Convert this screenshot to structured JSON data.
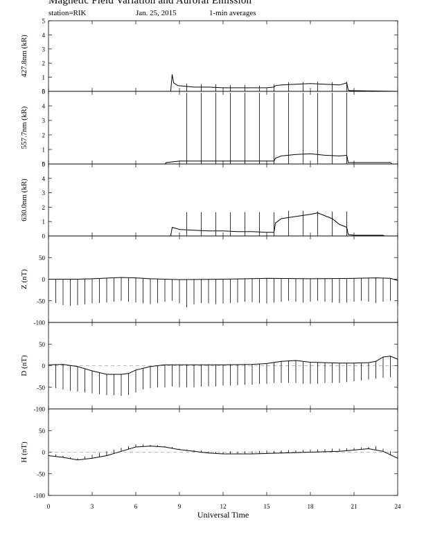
{
  "header": {
    "title": "Magnetic Field Variation and Auroral Emission",
    "station": "station=RIK",
    "date": "Jan. 25, 2015",
    "averaging": "1-min averages"
  },
  "chart_data": {
    "type": "line",
    "xlabel": "Universal Time",
    "xlim": [
      0,
      24
    ],
    "x_ticks": [
      0,
      3,
      6,
      9,
      12,
      15,
      18,
      21,
      24
    ],
    "panels": [
      {
        "id": "427",
        "ylabel": "427.8nm (kR)",
        "ylim": [
          0,
          5
        ],
        "y_ticks": [
          0,
          1,
          2,
          3,
          4,
          5
        ],
        "zero_line": false,
        "series": [
          {
            "x": [
              0,
              8.4,
              8.5,
              8.6,
              8.9,
              9.5,
              10,
              11,
              12,
              13,
              14,
              15,
              15.5,
              15.6,
              16,
              17,
              18,
              19,
              20,
              20.5,
              20.6,
              20.7,
              24
            ],
            "y": [
              0,
              0,
              1.2,
              0.6,
              0.4,
              0.35,
              0.3,
              0.3,
              0.25,
              0.25,
              0.25,
              0.25,
              0.3,
              0.4,
              0.45,
              0.5,
              0.55,
              0.5,
              0.45,
              0.6,
              0.1,
              0.05,
              0
            ]
          }
        ],
        "spikes": [
          {
            "x": 9.5,
            "y": 0.55
          },
          {
            "x": 10.5,
            "y": 0.5
          },
          {
            "x": 11.5,
            "y": 0.5
          },
          {
            "x": 12.5,
            "y": 0.45
          },
          {
            "x": 13.5,
            "y": 0.45
          },
          {
            "x": 14.5,
            "y": 0.4
          },
          {
            "x": 15.5,
            "y": 0.5
          },
          {
            "x": 16.5,
            "y": 0.65
          },
          {
            "x": 17.5,
            "y": 0.65
          },
          {
            "x": 18.5,
            "y": 0.7
          },
          {
            "x": 19.5,
            "y": 0.65
          },
          {
            "x": 20.5,
            "y": 0.7
          }
        ]
      },
      {
        "id": "557",
        "ylabel": "557.7nm (kR)",
        "ylim": [
          0,
          5
        ],
        "y_ticks": [
          0,
          1,
          2,
          3,
          4,
          5
        ],
        "zero_line": false,
        "series": [
          {
            "x": [
              0,
              8,
              8.1,
              9,
              10,
              11,
              12,
              13,
              14,
              15,
              15.5,
              15.6,
              16,
              17,
              18,
              19,
              20,
              20.5,
              20.6,
              21,
              23.5,
              23.6,
              24
            ],
            "y": [
              0,
              0,
              0.1,
              0.2,
              0.2,
              0.2,
              0.2,
              0.2,
              0.2,
              0.2,
              0.2,
              0.4,
              0.55,
              0.65,
              0.7,
              0.6,
              0.55,
              0.6,
              0.1,
              0.1,
              0.1,
              0,
              0
            ]
          }
        ],
        "spikes": [
          {
            "x": 9.5,
            "y": 4.9
          },
          {
            "x": 10.5,
            "y": 4.9
          },
          {
            "x": 11.5,
            "y": 4.9
          },
          {
            "x": 12.5,
            "y": 4.9
          },
          {
            "x": 13.5,
            "y": 4.9
          },
          {
            "x": 14.5,
            "y": 4.9
          },
          {
            "x": 15.5,
            "y": 4.9
          },
          {
            "x": 16.5,
            "y": 4.9
          },
          {
            "x": 17.5,
            "y": 4.9
          },
          {
            "x": 18.5,
            "y": 4.9
          },
          {
            "x": 19.5,
            "y": 4.9
          },
          {
            "x": 20.5,
            "y": 4.9
          }
        ]
      },
      {
        "id": "630",
        "ylabel": "630.0nm (kR)",
        "ylim": [
          0,
          5
        ],
        "y_ticks": [
          0,
          1,
          2,
          3,
          4,
          5
        ],
        "zero_line": false,
        "series": [
          {
            "x": [
              0,
              8.4,
              8.5,
              9,
              10,
              11,
              12,
              13,
              14,
              15,
              15.5,
              15.6,
              16,
              17,
              18,
              18.5,
              19,
              19.5,
              20,
              20.5,
              20.6,
              21,
              23,
              23.1,
              24
            ],
            "y": [
              0,
              0,
              0.6,
              0.45,
              0.4,
              0.35,
              0.35,
              0.3,
              0.3,
              0.25,
              0.25,
              0.9,
              1.2,
              1.35,
              1.5,
              1.6,
              1.4,
              1.2,
              0.8,
              0.6,
              0.1,
              0.05,
              0.05,
              0,
              0
            ]
          }
        ],
        "spikes": [
          {
            "x": 9.5,
            "y": 1.65
          },
          {
            "x": 10.5,
            "y": 1.65
          },
          {
            "x": 11.5,
            "y": 1.65
          },
          {
            "x": 12.5,
            "y": 1.65
          },
          {
            "x": 13.5,
            "y": 1.65
          },
          {
            "x": 14.5,
            "y": 1.65
          },
          {
            "x": 15.5,
            "y": 1.65
          },
          {
            "x": 16.5,
            "y": 1.75
          },
          {
            "x": 17.5,
            "y": 1.75
          },
          {
            "x": 18.5,
            "y": 1.7
          },
          {
            "x": 19.5,
            "y": 1.7
          },
          {
            "x": 20.5,
            "y": 1.7
          }
        ]
      },
      {
        "id": "Z",
        "ylabel": "Z (nT)",
        "ylim": [
          -100,
          100
        ],
        "y_ticks": [
          -100,
          -50,
          0,
          50
        ],
        "zero_line": false,
        "series": [
          {
            "x": [
              0,
              2,
              3,
              5,
              6,
              7,
              9,
              12,
              15,
              18,
              21,
              22.5,
              23.5,
              24
            ],
            "y": [
              0,
              0,
              1,
              4,
              3,
              1,
              -1,
              0,
              2,
              1,
              2,
              3,
              2,
              -3
            ]
          }
        ],
        "spikes": [
          {
            "x": 0.5,
            "y": -55
          },
          {
            "x": 1,
            "y": -60
          },
          {
            "x": 1.5,
            "y": -62
          },
          {
            "x": 2,
            "y": -60
          },
          {
            "x": 2.5,
            "y": -58
          },
          {
            "x": 3,
            "y": -56
          },
          {
            "x": 3.5,
            "y": -55
          },
          {
            "x": 4,
            "y": -54
          },
          {
            "x": 4.5,
            "y": -52
          },
          {
            "x": 5,
            "y": -50
          },
          {
            "x": 5.5,
            "y": -52
          },
          {
            "x": 6,
            "y": -54
          },
          {
            "x": 6.5,
            "y": -56
          },
          {
            "x": 7,
            "y": -58
          },
          {
            "x": 7.5,
            "y": -55
          },
          {
            "x": 8,
            "y": -52
          },
          {
            "x": 8.5,
            "y": -50
          },
          {
            "x": 9,
            "y": -56
          },
          {
            "x": 9.5,
            "y": -65
          },
          {
            "x": 10,
            "y": -58
          },
          {
            "x": 10.5,
            "y": -55
          },
          {
            "x": 11,
            "y": -56
          },
          {
            "x": 11.5,
            "y": -58
          },
          {
            "x": 12,
            "y": -56
          },
          {
            "x": 12.5,
            "y": -55
          },
          {
            "x": 13,
            "y": -54
          },
          {
            "x": 13.5,
            "y": -52
          },
          {
            "x": 14,
            "y": -53
          },
          {
            "x": 14.5,
            "y": -55
          },
          {
            "x": 15,
            "y": -56
          },
          {
            "x": 15.5,
            "y": -54
          },
          {
            "x": 16,
            "y": -52
          },
          {
            "x": 16.5,
            "y": -50
          },
          {
            "x": 17,
            "y": -52
          },
          {
            "x": 17.5,
            "y": -54
          },
          {
            "x": 18,
            "y": -52
          },
          {
            "x": 18.5,
            "y": -50
          },
          {
            "x": 19,
            "y": -52
          },
          {
            "x": 19.5,
            "y": -54
          },
          {
            "x": 20,
            "y": -55
          },
          {
            "x": 20.5,
            "y": -54
          },
          {
            "x": 21,
            "y": -52
          },
          {
            "x": 21.5,
            "y": -50
          },
          {
            "x": 22,
            "y": -52
          },
          {
            "x": 22.5,
            "y": -55
          },
          {
            "x": 23,
            "y": -52
          },
          {
            "x": 23.5,
            "y": -50
          },
          {
            "x": 24,
            "y": -60
          }
        ]
      },
      {
        "id": "D",
        "ylabel": "D (nT)",
        "ylim": [
          -100,
          100
        ],
        "y_ticks": [
          -100,
          -50,
          0,
          50
        ],
        "zero_line": true,
        "series": [
          {
            "x": [
              0,
              1,
              2,
              3,
              4,
              5,
              5.5,
              6,
              7,
              8,
              10,
              12,
              14,
              15,
              16,
              17,
              18,
              20,
              21,
              22,
              22.5,
              23,
              23.5,
              24
            ],
            "y": [
              2,
              3,
              -2,
              -12,
              -20,
              -20,
              -18,
              -10,
              -2,
              2,
              2,
              2,
              3,
              5,
              10,
              12,
              8,
              6,
              6,
              7,
              10,
              20,
              22,
              15
            ]
          }
        ],
        "spikes": [
          {
            "x": 0.5,
            "y": -52
          },
          {
            "x": 1,
            "y": -55
          },
          {
            "x": 1.5,
            "y": -58
          },
          {
            "x": 2,
            "y": -60
          },
          {
            "x": 2.5,
            "y": -62
          },
          {
            "x": 3,
            "y": -64
          },
          {
            "x": 3.5,
            "y": -66
          },
          {
            "x": 4,
            "y": -68
          },
          {
            "x": 4.5,
            "y": -68
          },
          {
            "x": 5,
            "y": -70
          },
          {
            "x": 5.5,
            "y": -68
          },
          {
            "x": 6,
            "y": -62
          },
          {
            "x": 6.5,
            "y": -55
          },
          {
            "x": 7,
            "y": -52
          },
          {
            "x": 7.5,
            "y": -50
          },
          {
            "x": 8,
            "y": -50
          },
          {
            "x": 8.5,
            "y": -48
          },
          {
            "x": 9,
            "y": -50
          },
          {
            "x": 9.5,
            "y": -50
          },
          {
            "x": 10,
            "y": -50
          },
          {
            "x": 10.5,
            "y": -48
          },
          {
            "x": 11,
            "y": -48
          },
          {
            "x": 11.5,
            "y": -48
          },
          {
            "x": 12,
            "y": -46
          },
          {
            "x": 12.5,
            "y": -46
          },
          {
            "x": 13,
            "y": -45
          },
          {
            "x": 13.5,
            "y": -44
          },
          {
            "x": 14,
            "y": -44
          },
          {
            "x": 14.5,
            "y": -42
          },
          {
            "x": 15,
            "y": -42
          },
          {
            "x": 15.5,
            "y": -40
          },
          {
            "x": 16,
            "y": -40
          },
          {
            "x": 16.5,
            "y": -40
          },
          {
            "x": 17,
            "y": -40
          },
          {
            "x": 17.5,
            "y": -42
          },
          {
            "x": 18,
            "y": -42
          },
          {
            "x": 18.5,
            "y": -42
          },
          {
            "x": 19,
            "y": -40
          },
          {
            "x": 19.5,
            "y": -40
          },
          {
            "x": 20,
            "y": -40
          },
          {
            "x": 20.5,
            "y": -38
          },
          {
            "x": 21,
            "y": -36
          },
          {
            "x": 21.5,
            "y": -34
          },
          {
            "x": 22,
            "y": -32
          },
          {
            "x": 22.5,
            "y": -30
          },
          {
            "x": 23,
            "y": -28
          },
          {
            "x": 23.5,
            "y": -26
          },
          {
            "x": 24,
            "y": -55
          }
        ]
      },
      {
        "id": "H",
        "ylabel": "H (nT)",
        "ylim": [
          -100,
          100
        ],
        "y_ticks": [
          -100,
          -50,
          0,
          50
        ],
        "zero_line": true,
        "series": [
          {
            "x": [
              0,
              1,
              2,
              3,
              4,
              5,
              6,
              7,
              8,
              9,
              10,
              11,
              12,
              14,
              16,
              18,
              20,
              22,
              23,
              24
            ],
            "y": [
              -8,
              -12,
              -18,
              -14,
              -8,
              2,
              12,
              14,
              12,
              6,
              2,
              -2,
              -4,
              -4,
              -2,
              0,
              2,
              8,
              2,
              -14
            ]
          }
        ],
        "spikes": [
          {
            "x": 0.5,
            "y": -5
          },
          {
            "x": 1,
            "y": -8
          },
          {
            "x": 1.5,
            "y": -12
          },
          {
            "x": 2,
            "y": -14
          },
          {
            "x": 2.5,
            "y": -10
          },
          {
            "x": 3,
            "y": -6
          },
          {
            "x": 3.5,
            "y": -2
          },
          {
            "x": 4,
            "y": 2
          },
          {
            "x": 4.5,
            "y": 6
          },
          {
            "x": 5,
            "y": 10
          },
          {
            "x": 5.5,
            "y": 14
          },
          {
            "x": 6,
            "y": 18
          },
          {
            "x": 6.5,
            "y": 18
          },
          {
            "x": 7,
            "y": 17
          },
          {
            "x": 7.5,
            "y": 16
          },
          {
            "x": 8,
            "y": 14
          },
          {
            "x": 8.5,
            "y": 12
          },
          {
            "x": 9,
            "y": 8
          },
          {
            "x": 9.5,
            "y": 6
          },
          {
            "x": 10,
            "y": 5
          },
          {
            "x": 10.5,
            "y": 4
          },
          {
            "x": 11,
            "y": 2
          },
          {
            "x": 11.5,
            "y": 1
          },
          {
            "x": 12,
            "y": 0
          },
          {
            "x": 12.5,
            "y": 2
          },
          {
            "x": 13,
            "y": 1
          },
          {
            "x": 13.5,
            "y": 2
          },
          {
            "x": 14,
            "y": 2
          },
          {
            "x": 14.5,
            "y": 3
          },
          {
            "x": 15,
            "y": 4
          },
          {
            "x": 15.5,
            "y": 3
          },
          {
            "x": 16,
            "y": 4
          },
          {
            "x": 16.5,
            "y": 5
          },
          {
            "x": 17,
            "y": 4
          },
          {
            "x": 17.5,
            "y": 5
          },
          {
            "x": 18,
            "y": 6
          },
          {
            "x": 18.5,
            "y": 6
          },
          {
            "x": 19,
            "y": 7
          },
          {
            "x": 19.5,
            "y": 8
          },
          {
            "x": 20,
            "y": 8
          },
          {
            "x": 20.5,
            "y": 9
          },
          {
            "x": 21,
            "y": 10
          },
          {
            "x": 21.5,
            "y": 11
          },
          {
            "x": 22,
            "y": 12
          },
          {
            "x": 22.5,
            "y": 14
          },
          {
            "x": 23,
            "y": 8
          },
          {
            "x": 23.5,
            "y": 2
          },
          {
            "x": 24,
            "y": -8
          }
        ]
      }
    ]
  }
}
